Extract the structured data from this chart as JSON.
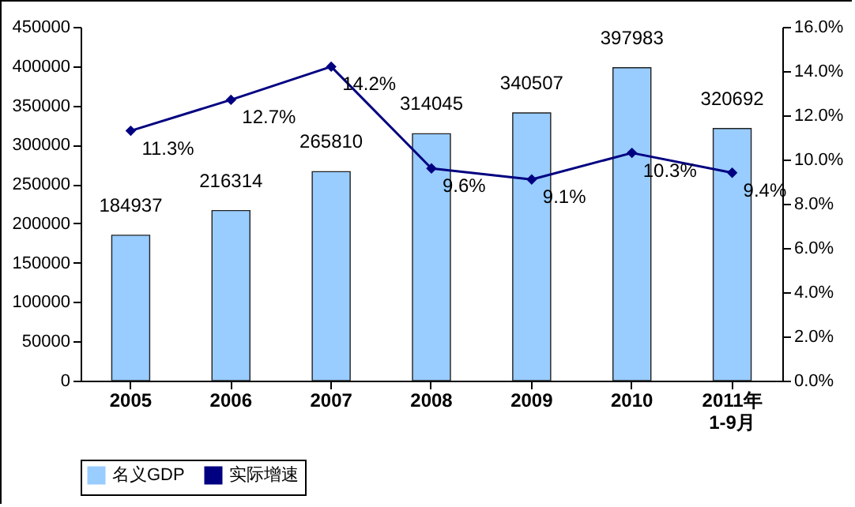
{
  "chart_data": {
    "type": "bar",
    "categories": [
      "2005",
      "2006",
      "2007",
      "2008",
      "2009",
      "2010",
      "2011年\n1-9月"
    ],
    "series": [
      {
        "name": "名义GDP",
        "color": "#99ccff",
        "values": [
          184937,
          216314,
          265810,
          314045,
          340507,
          397983,
          320692
        ]
      },
      {
        "name": "实际增速",
        "type": "line",
        "axis": "y2",
        "color": "#000080",
        "values": [
          11.3,
          12.7,
          14.2,
          9.6,
          9.1,
          10.3,
          9.4
        ],
        "value_labels": [
          "11.3%",
          "12.7%",
          "14.2%",
          "9.6%",
          "9.1%",
          "10.3%",
          "9.4%"
        ]
      }
    ],
    "data_labels": true,
    "ylim": [
      0,
      450000
    ],
    "yticks": [
      0,
      50000,
      100000,
      150000,
      200000,
      250000,
      300000,
      350000,
      400000,
      450000
    ],
    "y2lim": [
      0,
      16
    ],
    "y2ticks": [
      {
        "value": 0,
        "label": "0.0%"
      },
      {
        "value": 2,
        "label": "2.0%"
      },
      {
        "value": 4,
        "label": "4.0%"
      },
      {
        "value": 6,
        "label": "6.0%"
      },
      {
        "value": 8,
        "label": "8.0%"
      },
      {
        "value": 10,
        "label": "10.0%"
      },
      {
        "value": 12,
        "label": "12.0%"
      },
      {
        "value": 14,
        "label": "14.0%"
      },
      {
        "value": 16,
        "label": "16.0%"
      }
    ],
    "grid": false,
    "legend": "bottom",
    "marker": "diamond",
    "line_style": "solid"
  }
}
